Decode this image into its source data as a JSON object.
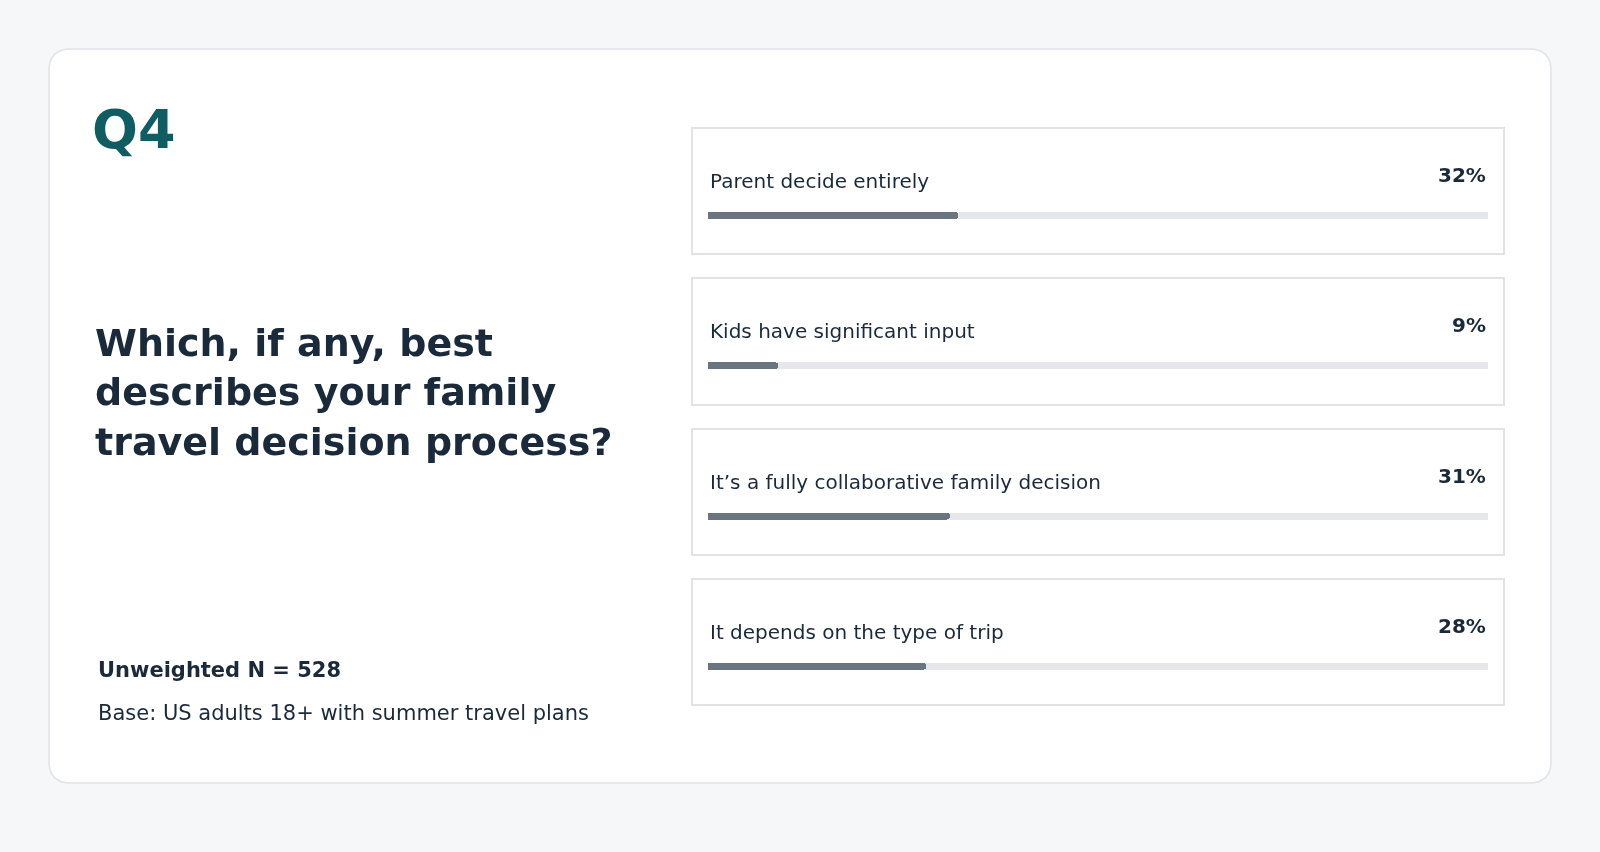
{
  "chart_data": {
    "type": "bar",
    "orientation": "horizontal",
    "title": "Which, if any, best describes your family travel decision process?",
    "categories": [
      "Parent decide entirely",
      "Kids have significant input",
      "It’s a fully collaborative family decision",
      "It depends on the type of trip"
    ],
    "values": [
      32,
      9,
      31,
      28
    ],
    "value_labels": [
      "32%",
      "9%",
      "31%",
      "28%"
    ],
    "color": "#6b7580",
    "xlim": [
      0,
      100
    ],
    "tick_labels": "y",
    "annotations": [
      "Q4",
      "Unweighted N = 528",
      "Base: US adults 18+ with summer travel plans"
    ]
  }
}
